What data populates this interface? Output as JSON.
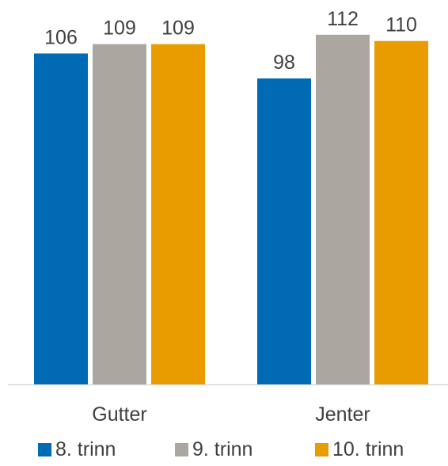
{
  "chart_data": {
    "type": "bar",
    "categories": [
      "Gutter",
      "Jenter"
    ],
    "series": [
      {
        "name": "8. trinn",
        "values": [
          106,
          98
        ],
        "color": "#006AB4"
      },
      {
        "name": "9. trinn",
        "values": [
          109,
          112
        ],
        "color": "#ACA6A1"
      },
      {
        "name": "10. trinn",
        "values": [
          109,
          110
        ],
        "color": "#E89C00"
      }
    ],
    "ylim": [
      0,
      120
    ],
    "grid": false,
    "data_labels": true,
    "legend_position": "bottom"
  }
}
